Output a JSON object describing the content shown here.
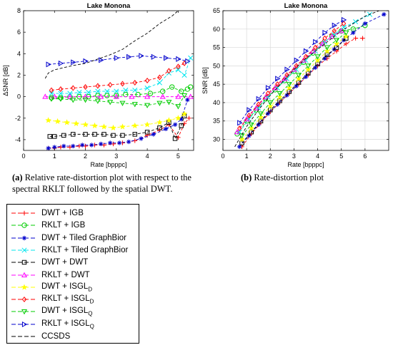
{
  "captions": {
    "a": {
      "label": "(a)",
      "text": " Relative rate-distortion plot with respect to the spectral RKLT followed by the spatial DWT."
    },
    "b": {
      "label": "(b)",
      "text": " Rate-distortion plot"
    }
  },
  "styles": {
    "DWT + IGB": {
      "color": "#ff0000",
      "marker": "plus"
    },
    "RKLT + IGB": {
      "color": "#00cc00",
      "marker": "circle"
    },
    "DWT + Tiled GraphBior": {
      "color": "#0000cc",
      "marker": "asterisk"
    },
    "RKLT + Tiled GraphBior": {
      "color": "#00e5ee",
      "marker": "cross"
    },
    "DWT + DWT": {
      "color": "#000000",
      "marker": "square"
    },
    "RKLT + DWT": {
      "color": "#ff00ff",
      "marker": "triangle-up"
    },
    "DWT + ISGL_D": {
      "color": "#ffff00",
      "marker": "star"
    },
    "RKLT + ISGL_D": {
      "color": "#ff0000",
      "marker": "diamond"
    },
    "DWT + ISGL_Q": {
      "color": "#00cc00",
      "marker": "triangle-down"
    },
    "RKLT + ISGL_Q": {
      "color": "#0000cc",
      "marker": "triangle-right"
    },
    "CCSDS": {
      "color": "#000000",
      "marker": "none"
    }
  },
  "legend": {
    "items": [
      {
        "base": "DWT + IGB",
        "sub": "",
        "key": "DWT + IGB"
      },
      {
        "base": "RKLT + IGB",
        "sub": "",
        "key": "RKLT + IGB"
      },
      {
        "base": "DWT + Tiled GraphBior",
        "sub": "",
        "key": "DWT + Tiled GraphBior"
      },
      {
        "base": "RKLT + Tiled GraphBior",
        "sub": "",
        "key": "RKLT + Tiled GraphBior"
      },
      {
        "base": "DWT + DWT",
        "sub": "",
        "key": "DWT + DWT"
      },
      {
        "base": "RKLT + DWT",
        "sub": "",
        "key": "RKLT + DWT"
      },
      {
        "base": "DWT + ISGL",
        "sub": "D",
        "key": "DWT + ISGL_D"
      },
      {
        "base": "RKLT + ISGL",
        "sub": "D",
        "key": "RKLT + ISGL_D"
      },
      {
        "base": "DWT + ISGL",
        "sub": "Q",
        "key": "DWT + ISGL_Q"
      },
      {
        "base": "RKLT + ISGL",
        "sub": "Q",
        "key": "RKLT + ISGL_Q"
      },
      {
        "base": "CCSDS",
        "sub": "",
        "key": "CCSDS"
      }
    ]
  },
  "chart_data": [
    {
      "type": "line",
      "title": "Lake Monona",
      "xlabel": "Rate [bpppc]",
      "ylabel": "ΔSNR [dB]",
      "xlim": [
        0,
        5.5
      ],
      "ylim": [
        -5,
        8
      ],
      "xticks": [
        0,
        1,
        2,
        3,
        4,
        5
      ],
      "yticks": [
        -4,
        -2,
        0,
        2,
        4,
        6,
        8
      ],
      "grid": false,
      "series": [
        {
          "name": "DWT + IGB",
          "x": [
            0.8,
            1.0,
            1.2,
            1.5,
            1.8,
            2.0,
            2.3,
            2.6,
            2.9,
            3.2,
            3.6,
            4.0,
            4.4,
            4.7,
            5.0,
            5.2,
            5.35
          ],
          "y": [
            -4.8,
            -4.8,
            -4.7,
            -4.7,
            -4.6,
            -4.6,
            -4.5,
            -4.5,
            -4.4,
            -4.3,
            -4.1,
            -3.6,
            -3.1,
            -2.6,
            -3.8,
            -2.5,
            -2.0
          ]
        },
        {
          "name": "RKLT + IGB",
          "x": [
            0.9,
            1.2,
            1.5,
            1.8,
            2.1,
            2.4,
            2.7,
            3.0,
            3.3,
            3.7,
            4.1,
            4.5,
            4.8,
            5.1,
            5.3,
            5.4
          ],
          "y": [
            -0.1,
            -0.1,
            0.0,
            0.0,
            0.0,
            0.1,
            0.1,
            0.1,
            0.2,
            0.2,
            0.3,
            0.5,
            0.9,
            0.5,
            0.7,
            0.9
          ]
        },
        {
          "name": "DWT + Tiled GraphBior",
          "x": [
            0.8,
            1.0,
            1.3,
            1.6,
            1.9,
            2.2,
            2.5,
            2.8,
            3.1,
            3.4,
            3.8,
            4.2,
            4.6,
            4.9,
            5.1,
            5.3
          ],
          "y": [
            -4.8,
            -4.7,
            -4.6,
            -4.6,
            -4.5,
            -4.5,
            -4.4,
            -4.3,
            -4.3,
            -4.2,
            -3.9,
            -3.5,
            -3.0,
            -2.6,
            -2.1,
            -0.3
          ]
        },
        {
          "name": "RKLT + Tiled GraphBior",
          "x": [
            0.9,
            1.2,
            1.5,
            1.8,
            2.1,
            2.4,
            2.7,
            3.0,
            3.3,
            3.6,
            4.0,
            4.4,
            4.7,
            5.0,
            5.2,
            5.4
          ],
          "y": [
            0.3,
            0.3,
            0.3,
            0.4,
            0.4,
            0.5,
            0.5,
            0.5,
            0.6,
            0.6,
            0.8,
            1.3,
            2.2,
            2.5,
            2.0,
            3.6
          ]
        },
        {
          "name": "DWT + DWT",
          "x": [
            0.85,
            1.0,
            1.3,
            1.6,
            2.0,
            2.3,
            2.6,
            2.9,
            3.2,
            3.6,
            4.0,
            4.4,
            4.7,
            4.9,
            5.1,
            5.2
          ],
          "y": [
            -3.7,
            -3.7,
            -3.6,
            -3.5,
            -3.5,
            -3.5,
            -3.5,
            -3.6,
            -3.6,
            -3.5,
            -3.3,
            -2.9,
            -2.4,
            -3.9,
            -2.7,
            -1.8
          ]
        },
        {
          "name": "RKLT + DWT",
          "x": [
            0.7,
            1.0,
            1.5,
            2.0,
            2.5,
            3.0,
            3.5,
            4.0,
            4.5,
            5.0,
            5.4
          ],
          "y": [
            0,
            0,
            0,
            0,
            0,
            0,
            0,
            0,
            0,
            0,
            0
          ]
        },
        {
          "name": "DWT + ISGL_D",
          "x": [
            0.8,
            1.1,
            1.4,
            1.7,
            2.0,
            2.3,
            2.6,
            2.9,
            3.2,
            3.6,
            4.0,
            4.4,
            4.7,
            5.0,
            5.2
          ],
          "y": [
            -2.2,
            -2.3,
            -2.4,
            -2.5,
            -2.6,
            -2.7,
            -2.8,
            -2.9,
            -2.8,
            -2.7,
            -2.6,
            -2.4,
            -2.2,
            -2.0,
            -1.6
          ]
        },
        {
          "name": "RKLT + ISGL_D",
          "x": [
            0.9,
            1.2,
            1.6,
            2.0,
            2.4,
            2.8,
            3.2,
            3.6,
            4.0,
            4.4,
            4.7,
            5.0,
            5.2
          ],
          "y": [
            0.6,
            0.7,
            0.8,
            0.9,
            1.0,
            1.1,
            1.2,
            1.3,
            1.5,
            1.8,
            2.4,
            2.8,
            3.1
          ]
        },
        {
          "name": "DWT + ISGL_Q",
          "x": [
            0.9,
            1.2,
            1.6,
            2.0,
            2.4,
            2.8,
            3.2,
            3.6,
            4.0,
            4.4,
            4.7,
            5.0,
            5.2
          ],
          "y": [
            -0.2,
            -0.2,
            -0.3,
            -0.3,
            -0.4,
            -0.5,
            -0.6,
            -0.7,
            -0.8,
            -0.6,
            -0.5,
            -0.9,
            0.1
          ]
        },
        {
          "name": "RKLT + ISGL_Q",
          "x": [
            0.8,
            1.2,
            1.6,
            2.0,
            2.5,
            3.0,
            3.4,
            3.8,
            4.2,
            4.6,
            5.0,
            5.3
          ],
          "y": [
            3.0,
            3.1,
            3.2,
            3.3,
            3.4,
            3.6,
            3.7,
            3.8,
            3.7,
            3.6,
            3.5,
            3.3
          ]
        },
        {
          "name": "CCSDS",
          "x": [
            0.7,
            0.8,
            1.0,
            1.3,
            1.6,
            2.0,
            2.4,
            2.8,
            3.2,
            3.6,
            4.0,
            4.4,
            4.8,
            5.0
          ],
          "y": [
            1.7,
            2.2,
            2.5,
            2.7,
            2.9,
            3.1,
            3.5,
            3.9,
            4.4,
            5.2,
            5.9,
            6.8,
            7.5,
            8.0
          ]
        }
      ]
    },
    {
      "type": "line",
      "title": "Lake Monona",
      "xlabel": "Rate [bpppc]",
      "ylabel": "SNR [dB]",
      "xlim": [
        0,
        7
      ],
      "ylim": [
        27,
        65
      ],
      "xticks": [
        0,
        1,
        2,
        3,
        4,
        5,
        6
      ],
      "yticks": [
        30,
        35,
        40,
        45,
        50,
        55,
        60,
        65
      ],
      "grid": true,
      "series": [
        {
          "name": "DWT + IGB",
          "x": [
            0.8,
            1.2,
            1.6,
            2.0,
            2.4,
            2.8,
            3.2,
            3.6,
            4.0,
            4.4,
            4.8,
            5.2,
            5.6,
            5.9
          ],
          "y": [
            28.0,
            31.5,
            34.5,
            37.5,
            40.0,
            42.5,
            45.0,
            47.5,
            50.0,
            52.0,
            54.0,
            56.0,
            57.5,
            57.5
          ]
        },
        {
          "name": "RKLT + IGB",
          "x": [
            0.6,
            1.0,
            1.4,
            1.8,
            2.2,
            2.6,
            3.0,
            3.4,
            3.8,
            4.2,
            4.6,
            5.0,
            5.5,
            6.0
          ],
          "y": [
            31.5,
            35.0,
            38.0,
            41.0,
            43.5,
            46.0,
            48.5,
            51.0,
            53.5,
            56.0,
            58.0,
            59.5,
            60.0,
            61.0
          ]
        },
        {
          "name": "DWT + Tiled GraphBior",
          "x": [
            0.7,
            1.1,
            1.5,
            1.9,
            2.3,
            2.7,
            3.1,
            3.5,
            3.9,
            4.3,
            4.7,
            5.1,
            5.5,
            6.0,
            6.8
          ],
          "y": [
            28.0,
            31.0,
            34.0,
            37.0,
            39.5,
            42.0,
            44.5,
            47.0,
            49.5,
            52.0,
            54.5,
            57.0,
            59.0,
            61.5,
            64.0
          ]
        },
        {
          "name": "RKLT + Tiled GraphBior",
          "x": [
            0.7,
            1.1,
            1.5,
            1.9,
            2.3,
            2.7,
            3.1,
            3.5,
            3.9,
            4.3,
            4.7,
            5.1,
            5.6,
            6.2
          ],
          "y": [
            32.0,
            35.5,
            38.5,
            41.5,
            44.0,
            46.5,
            49.0,
            51.5,
            54.0,
            56.5,
            58.5,
            60.5,
            62.0,
            64.0
          ]
        },
        {
          "name": "DWT + DWT",
          "x": [
            0.8,
            1.2,
            1.6,
            2.0,
            2.4,
            2.8,
            3.2,
            3.6,
            4.0,
            4.4,
            4.8,
            5.2
          ],
          "y": [
            29.0,
            32.0,
            35.0,
            38.0,
            40.5,
            43.0,
            45.5,
            48.0,
            50.5,
            53.0,
            55.0,
            57.5
          ]
        },
        {
          "name": "RKLT + DWT",
          "x": [
            0.6,
            1.0,
            1.4,
            1.8,
            2.2,
            2.6,
            3.0,
            3.4,
            3.8,
            4.2,
            4.6,
            5.0
          ],
          "y": [
            32.0,
            35.5,
            38.5,
            41.5,
            44.0,
            46.5,
            49.0,
            51.5,
            54.0,
            56.0,
            58.0,
            59.5
          ]
        },
        {
          "name": "DWT + ISGL_D",
          "x": [
            0.8,
            1.2,
            1.6,
            2.0,
            2.4,
            2.8,
            3.2,
            3.6,
            4.0,
            4.4,
            4.8,
            5.2
          ],
          "y": [
            30.0,
            33.0,
            36.0,
            39.0,
            41.5,
            44.0,
            46.5,
            49.0,
            51.5,
            54.0,
            56.0,
            58.0
          ]
        },
        {
          "name": "RKLT + ISGL_D",
          "x": [
            0.7,
            1.1,
            1.5,
            1.9,
            2.3,
            2.7,
            3.1,
            3.5,
            3.9,
            4.3,
            4.7,
            5.1
          ],
          "y": [
            33.0,
            36.5,
            39.5,
            42.5,
            45.0,
            47.5,
            50.0,
            52.5,
            55.0,
            57.5,
            59.5,
            61.5
          ]
        },
        {
          "name": "DWT + ISGL_Q",
          "x": [
            0.8,
            1.2,
            1.6,
            2.0,
            2.4,
            2.8,
            3.2,
            3.6,
            4.0,
            4.4,
            4.8,
            5.2
          ],
          "y": [
            31.0,
            34.0,
            37.0,
            40.0,
            42.5,
            45.0,
            47.5,
            50.0,
            52.5,
            55.0,
            57.0,
            59.0
          ]
        },
        {
          "name": "RKLT + ISGL_Q",
          "x": [
            0.7,
            1.1,
            1.5,
            1.9,
            2.3,
            2.7,
            3.1,
            3.5,
            3.9,
            4.3,
            4.7,
            5.1
          ],
          "y": [
            34.5,
            38.0,
            41.0,
            44.0,
            46.5,
            49.0,
            51.5,
            54.0,
            56.5,
            59.0,
            61.0,
            62.5
          ]
        },
        {
          "name": "CCSDS",
          "x": [
            0.5,
            1.0,
            1.5,
            2.0,
            2.5,
            3.0,
            3.5,
            4.0,
            4.5,
            5.0,
            5.5,
            6.0,
            6.6
          ],
          "y": [
            28.0,
            33.5,
            38.0,
            42.0,
            45.5,
            49.0,
            52.0,
            54.5,
            57.0,
            59.5,
            61.5,
            63.5,
            65.0
          ]
        }
      ]
    }
  ]
}
